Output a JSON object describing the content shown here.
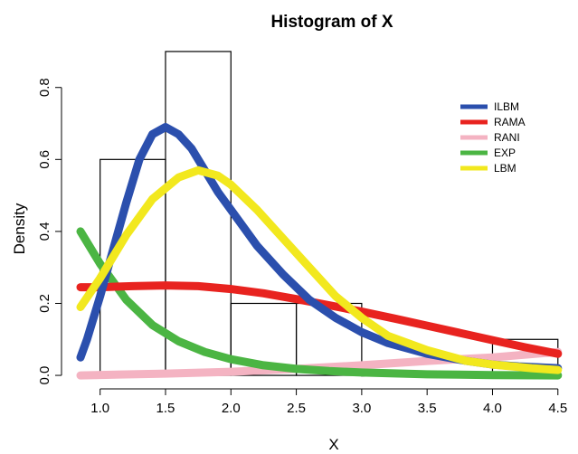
{
  "chart_data": {
    "type": "histogram",
    "title": "Histogram of X",
    "xlabel": "X",
    "ylabel": "Density",
    "xlim": [
      0.85,
      4.55
    ],
    "ylim": [
      -0.03,
      0.93
    ],
    "x_ticks": [
      1.0,
      1.5,
      2.0,
      2.5,
      3.0,
      3.5,
      4.0,
      4.5
    ],
    "x_tick_labels": [
      "1.0",
      "1.5",
      "2.0",
      "2.5",
      "3.0",
      "3.5",
      "4.0",
      "4.5"
    ],
    "y_ticks": [
      0.0,
      0.2,
      0.4,
      0.6,
      0.8
    ],
    "y_tick_labels": [
      "0.0",
      "0.2",
      "0.4",
      "0.6",
      "0.8"
    ],
    "grid": false,
    "legend_position": "top-right",
    "bins": [
      {
        "from": 1.0,
        "to": 1.5,
        "density": 0.6
      },
      {
        "from": 1.5,
        "to": 2.0,
        "density": 0.9
      },
      {
        "from": 2.0,
        "to": 2.5,
        "density": 0.2
      },
      {
        "from": 2.5,
        "to": 3.0,
        "density": 0.2
      },
      {
        "from": 3.0,
        "to": 3.5,
        "density": 0.0
      },
      {
        "from": 3.5,
        "to": 4.0,
        "density": 0.0
      },
      {
        "from": 4.0,
        "to": 4.5,
        "density": 0.1
      }
    ],
    "series": [
      {
        "name": "ILBM",
        "color": "#2b4fad",
        "x": [
          0.85,
          0.9,
          1.0,
          1.1,
          1.2,
          1.3,
          1.4,
          1.5,
          1.6,
          1.7,
          1.8,
          1.9,
          2.0,
          2.2,
          2.4,
          2.6,
          2.8,
          3.0,
          3.2,
          3.5,
          3.8,
          4.0,
          4.2,
          4.5
        ],
        "y": [
          0.05,
          0.1,
          0.22,
          0.35,
          0.48,
          0.6,
          0.67,
          0.69,
          0.67,
          0.63,
          0.57,
          0.51,
          0.46,
          0.36,
          0.28,
          0.21,
          0.16,
          0.12,
          0.09,
          0.06,
          0.04,
          0.03,
          0.025,
          0.02
        ]
      },
      {
        "name": "RAMA",
        "color": "#e8231f",
        "x": [
          0.85,
          1.0,
          1.25,
          1.5,
          1.75,
          2.0,
          2.25,
          2.5,
          2.75,
          3.0,
          3.25,
          3.5,
          3.75,
          4.0,
          4.25,
          4.5
        ],
        "y": [
          0.245,
          0.245,
          0.248,
          0.25,
          0.248,
          0.24,
          0.228,
          0.212,
          0.195,
          0.177,
          0.158,
          0.138,
          0.118,
          0.098,
          0.078,
          0.06
        ]
      },
      {
        "name": "RANI",
        "color": "#f4b3c2",
        "x": [
          0.85,
          1.5,
          2.0,
          2.5,
          3.0,
          3.5,
          4.0,
          4.5
        ],
        "y": [
          0.0,
          0.005,
          0.01,
          0.018,
          0.028,
          0.04,
          0.05,
          0.065
        ]
      },
      {
        "name": "EXP",
        "color": "#4bb543",
        "x": [
          0.85,
          1.0,
          1.2,
          1.4,
          1.6,
          1.8,
          2.0,
          2.25,
          2.5,
          2.75,
          3.0,
          3.5,
          4.0,
          4.5
        ],
        "y": [
          0.4,
          0.31,
          0.21,
          0.14,
          0.095,
          0.065,
          0.045,
          0.028,
          0.018,
          0.012,
          0.008,
          0.003,
          0.001,
          0.0
        ]
      },
      {
        "name": "LBM",
        "color": "#f2e81e",
        "x": [
          0.85,
          1.0,
          1.2,
          1.4,
          1.6,
          1.75,
          1.9,
          2.0,
          2.2,
          2.4,
          2.6,
          2.8,
          3.0,
          3.2,
          3.5,
          3.8,
          4.0,
          4.3,
          4.5
        ],
        "y": [
          0.19,
          0.27,
          0.39,
          0.49,
          0.55,
          0.57,
          0.555,
          0.53,
          0.46,
          0.38,
          0.3,
          0.22,
          0.16,
          0.11,
          0.07,
          0.04,
          0.03,
          0.02,
          0.015
        ]
      }
    ]
  }
}
